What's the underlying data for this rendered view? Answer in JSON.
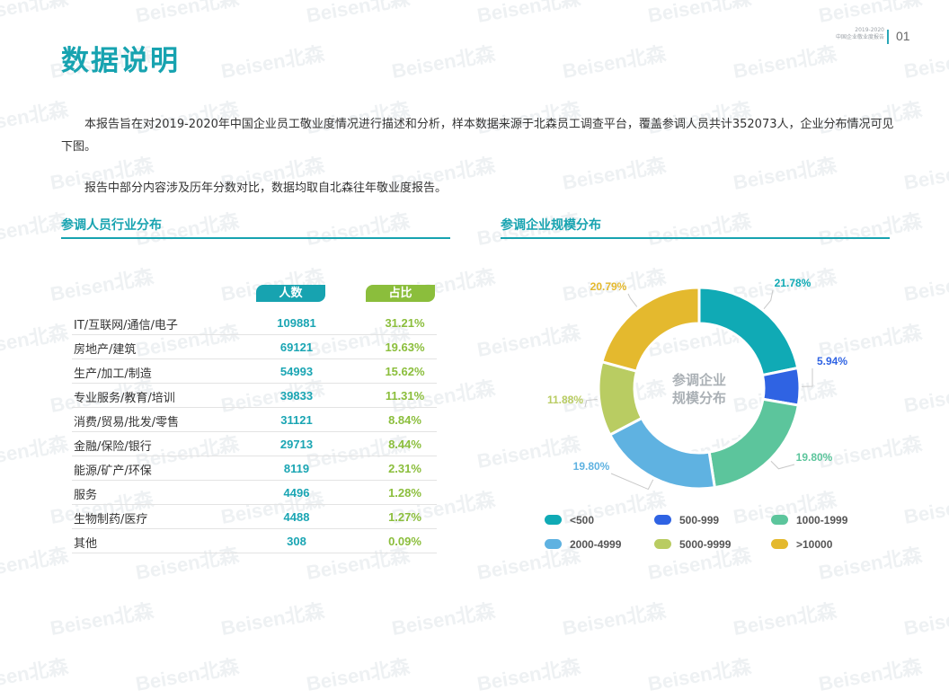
{
  "watermark": "Beisen北森",
  "header": {
    "year_range": "2019-2020",
    "report_name": "中国企业敬业度报告",
    "page": "01"
  },
  "title": "数据说明",
  "intro": [
    "本报告旨在对2019-2020年中国企业员工敬业度情况进行描述和分析，样本数据来源于北森员工调查平台，覆盖参调人员共计352073人，企业分布情况可见下图。",
    "报告中部分内容涉及历年分数对比，数据均取自北森往年敬业度报告。"
  ],
  "industry": {
    "section_title": "参调人员行业分布",
    "col_count": "人数",
    "col_pct": "占比",
    "rows": [
      {
        "name": "IT/互联网/通信/电子",
        "count": "109881",
        "pct": "31.21%"
      },
      {
        "name": "房地产/建筑",
        "count": "69121",
        "pct": "19.63%"
      },
      {
        "name": "生产/加工/制造",
        "count": "54993",
        "pct": "15.62%"
      },
      {
        "name": "专业服务/教育/培训",
        "count": "39833",
        "pct": "11.31%"
      },
      {
        "name": "消费/贸易/批发/零售",
        "count": "31121",
        "pct": "8.84%"
      },
      {
        "name": "金融/保险/银行",
        "count": "29713",
        "pct": "8.44%"
      },
      {
        "name": "能源/矿产/环保",
        "count": "8119",
        "pct": "2.31%"
      },
      {
        "name": "服务",
        "count": "4496",
        "pct": "1.28%"
      },
      {
        "name": "生物制药/医疗",
        "count": "4488",
        "pct": "1.27%"
      },
      {
        "name": "其他",
        "count": "308",
        "pct": "0.09%"
      }
    ]
  },
  "scale": {
    "section_title": "参调企业规模分布",
    "center_line1": "参调企业",
    "center_line2": "规模分布"
  },
  "chart_data": {
    "type": "pie",
    "donut": true,
    "categories": [
      "<500",
      "500-999",
      "1000-1999",
      "2000-4999",
      "5000-9999",
      ">10000"
    ],
    "values": [
      21.78,
      5.94,
      19.8,
      19.8,
      11.88,
      20.79
    ],
    "labels": [
      "21.78%",
      "5.94%",
      "19.80%",
      "19.80%",
      "11.88%",
      "20.79%"
    ],
    "colors": [
      "#10aab5",
      "#2f63e3",
      "#5cc59c",
      "#5fb2e1",
      "#b9cc62",
      "#e4b92e"
    ],
    "legend": "bottom"
  }
}
